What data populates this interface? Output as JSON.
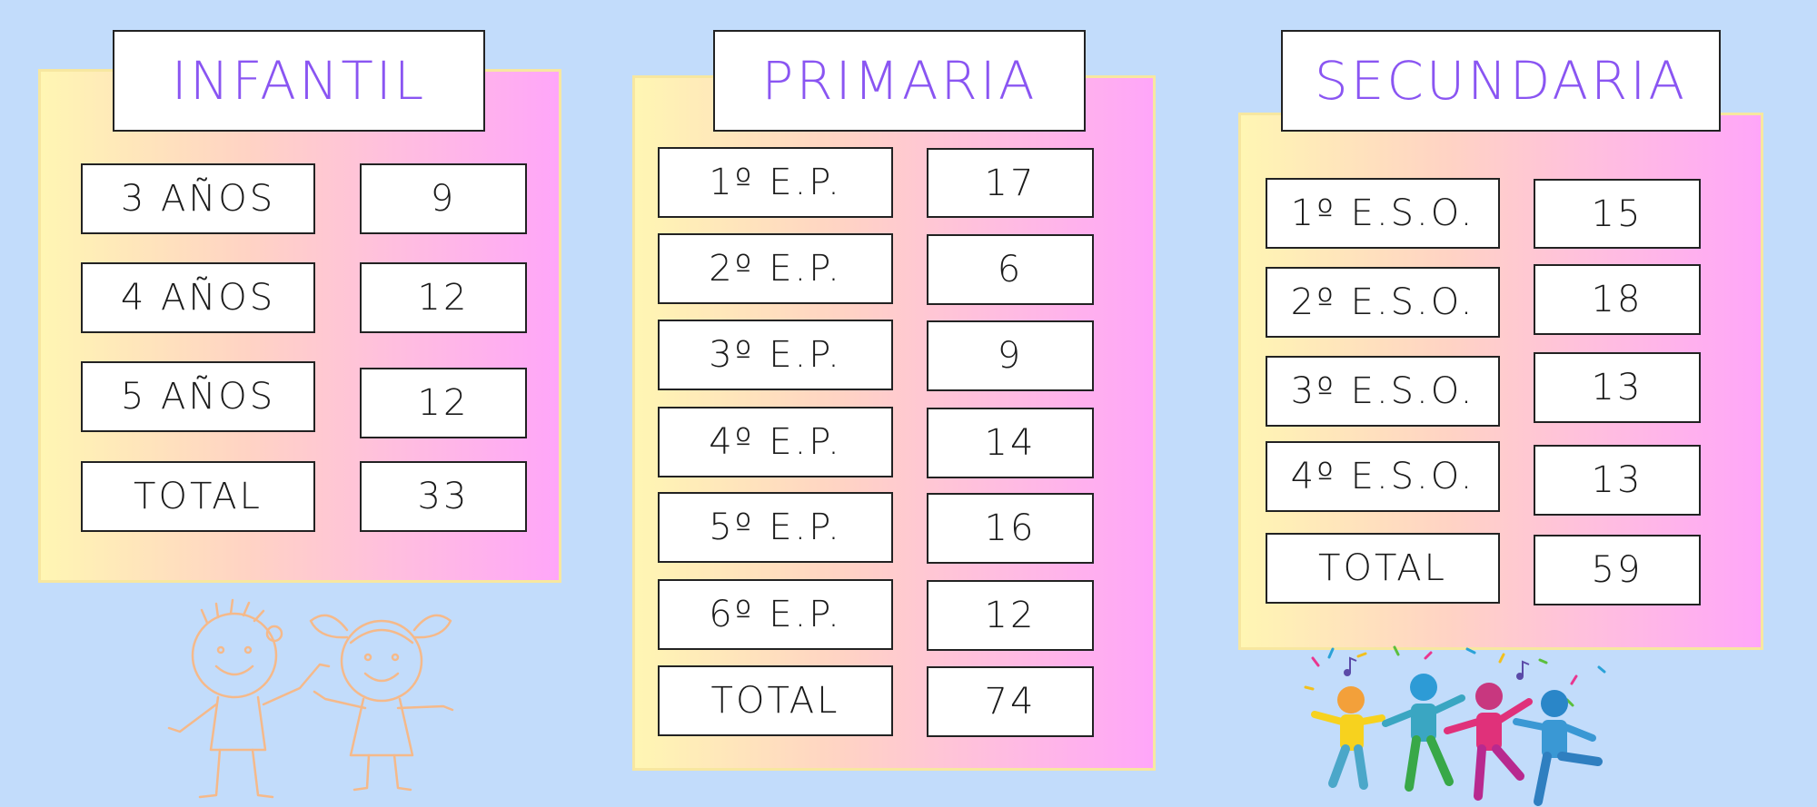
{
  "infantil": {
    "title": "INFANTIL",
    "rows": [
      {
        "label": "3 AÑOS",
        "value": "9"
      },
      {
        "label": "4 AÑOS",
        "value": "12"
      },
      {
        "label": "5 AÑOS",
        "value": "12"
      },
      {
        "label": "TOTAL",
        "value": "33"
      }
    ]
  },
  "primaria": {
    "title": "PRIMARIA",
    "rows": [
      {
        "label": "1º E.P.",
        "value": "17"
      },
      {
        "label": "2º E.P.",
        "value": "6"
      },
      {
        "label": "3º E.P.",
        "value": "9"
      },
      {
        "label": "4º E.P.",
        "value": "14"
      },
      {
        "label": "5º E.P.",
        "value": "16"
      },
      {
        "label": "6º E.P.",
        "value": "12"
      },
      {
        "label": "TOTAL",
        "value": "74"
      }
    ]
  },
  "secundaria": {
    "title": "SECUNDARIA",
    "rows": [
      {
        "label": "1º E.S.O.",
        "value": "15"
      },
      {
        "label": "2º E.S.O.",
        "value": "18"
      },
      {
        "label": "3º E.S.O.",
        "value": "13"
      },
      {
        "label": "4º E.S.O.",
        "value": "13"
      },
      {
        "label": "TOTAL",
        "value": "59"
      }
    ]
  },
  "colors": {
    "background": "#c2dcfb",
    "title_text": "#8a55f2",
    "panel_border": "#f7e7a0",
    "kids_sketch": "#f5b98a"
  },
  "icons": [
    "kids-sketch-illustration",
    "dancing-kids-illustration"
  ]
}
